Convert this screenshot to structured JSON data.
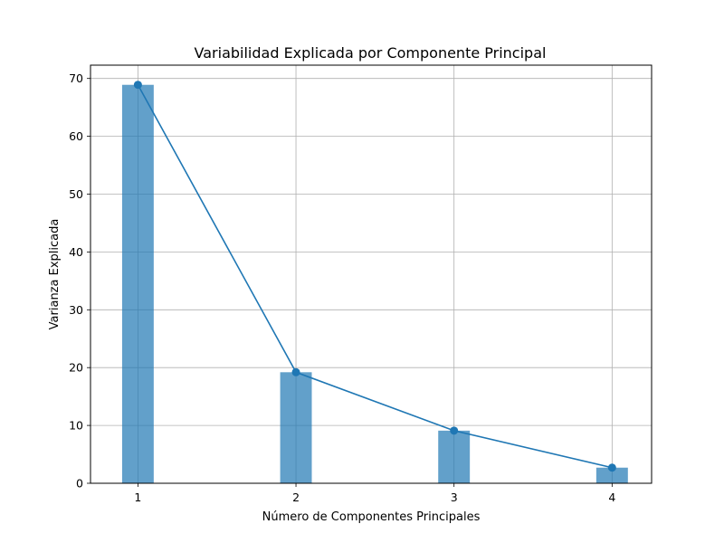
{
  "chart_data": {
    "type": "bar",
    "title": "Variabilidad Explicada por Componente Principal",
    "xlabel": "Número de Componentes Principales",
    "ylabel": "Varianza Explicada",
    "categories": [
      1,
      2,
      3,
      4
    ],
    "series": [
      {
        "kind": "bar",
        "values": [
          68.9,
          19.2,
          9.1,
          2.7
        ],
        "color": "#1f77b4",
        "opacity": 0.7
      },
      {
        "kind": "line",
        "values": [
          68.9,
          19.2,
          9.1,
          2.7
        ],
        "color": "#1f77b4",
        "marker": "circle"
      }
    ],
    "xlim": [
      0.7,
      4.25
    ],
    "ylim": [
      0,
      72.3
    ],
    "xticks": [
      "1",
      "2",
      "3",
      "4"
    ],
    "yticks": [
      "0",
      "10",
      "20",
      "30",
      "40",
      "50",
      "60",
      "70"
    ],
    "grid": true,
    "legend": "none"
  }
}
